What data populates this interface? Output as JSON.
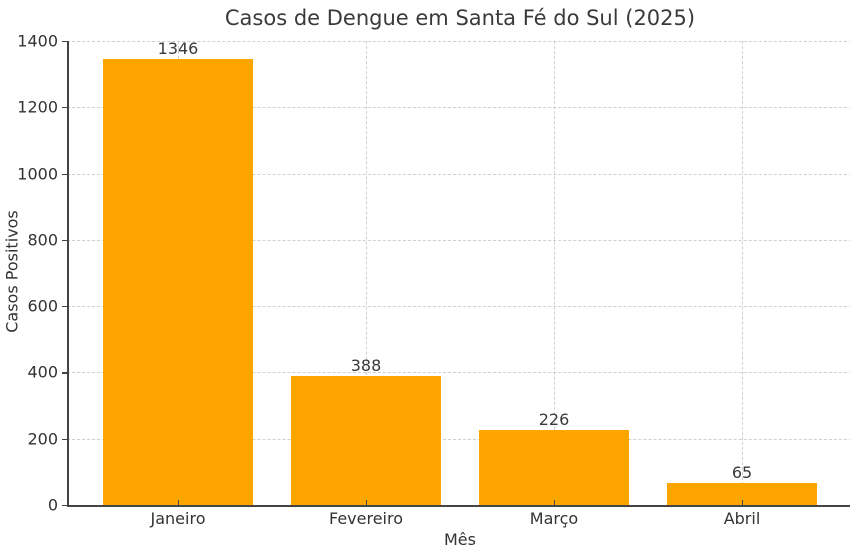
{
  "chart_data": {
    "type": "bar",
    "title": "Casos de Dengue em Santa Fé do Sul (2025)",
    "xlabel": "Mês",
    "ylabel": "Casos Positivos",
    "categories": [
      "Janeiro",
      "Fevereiro",
      "Março",
      "Abril"
    ],
    "values": [
      1346,
      388,
      226,
      65
    ],
    "data_labels": [
      "1346",
      "388",
      "226",
      "65"
    ],
    "ylim": [
      0,
      1400
    ],
    "yticks": [
      0,
      200,
      400,
      600,
      800,
      1000,
      1200,
      1400
    ],
    "ytick_labels": [
      "0",
      "200",
      "400",
      "600",
      "800",
      "1000",
      "1200",
      "1400"
    ],
    "grid": true,
    "legend": null,
    "bar_color": "#ffa500"
  }
}
